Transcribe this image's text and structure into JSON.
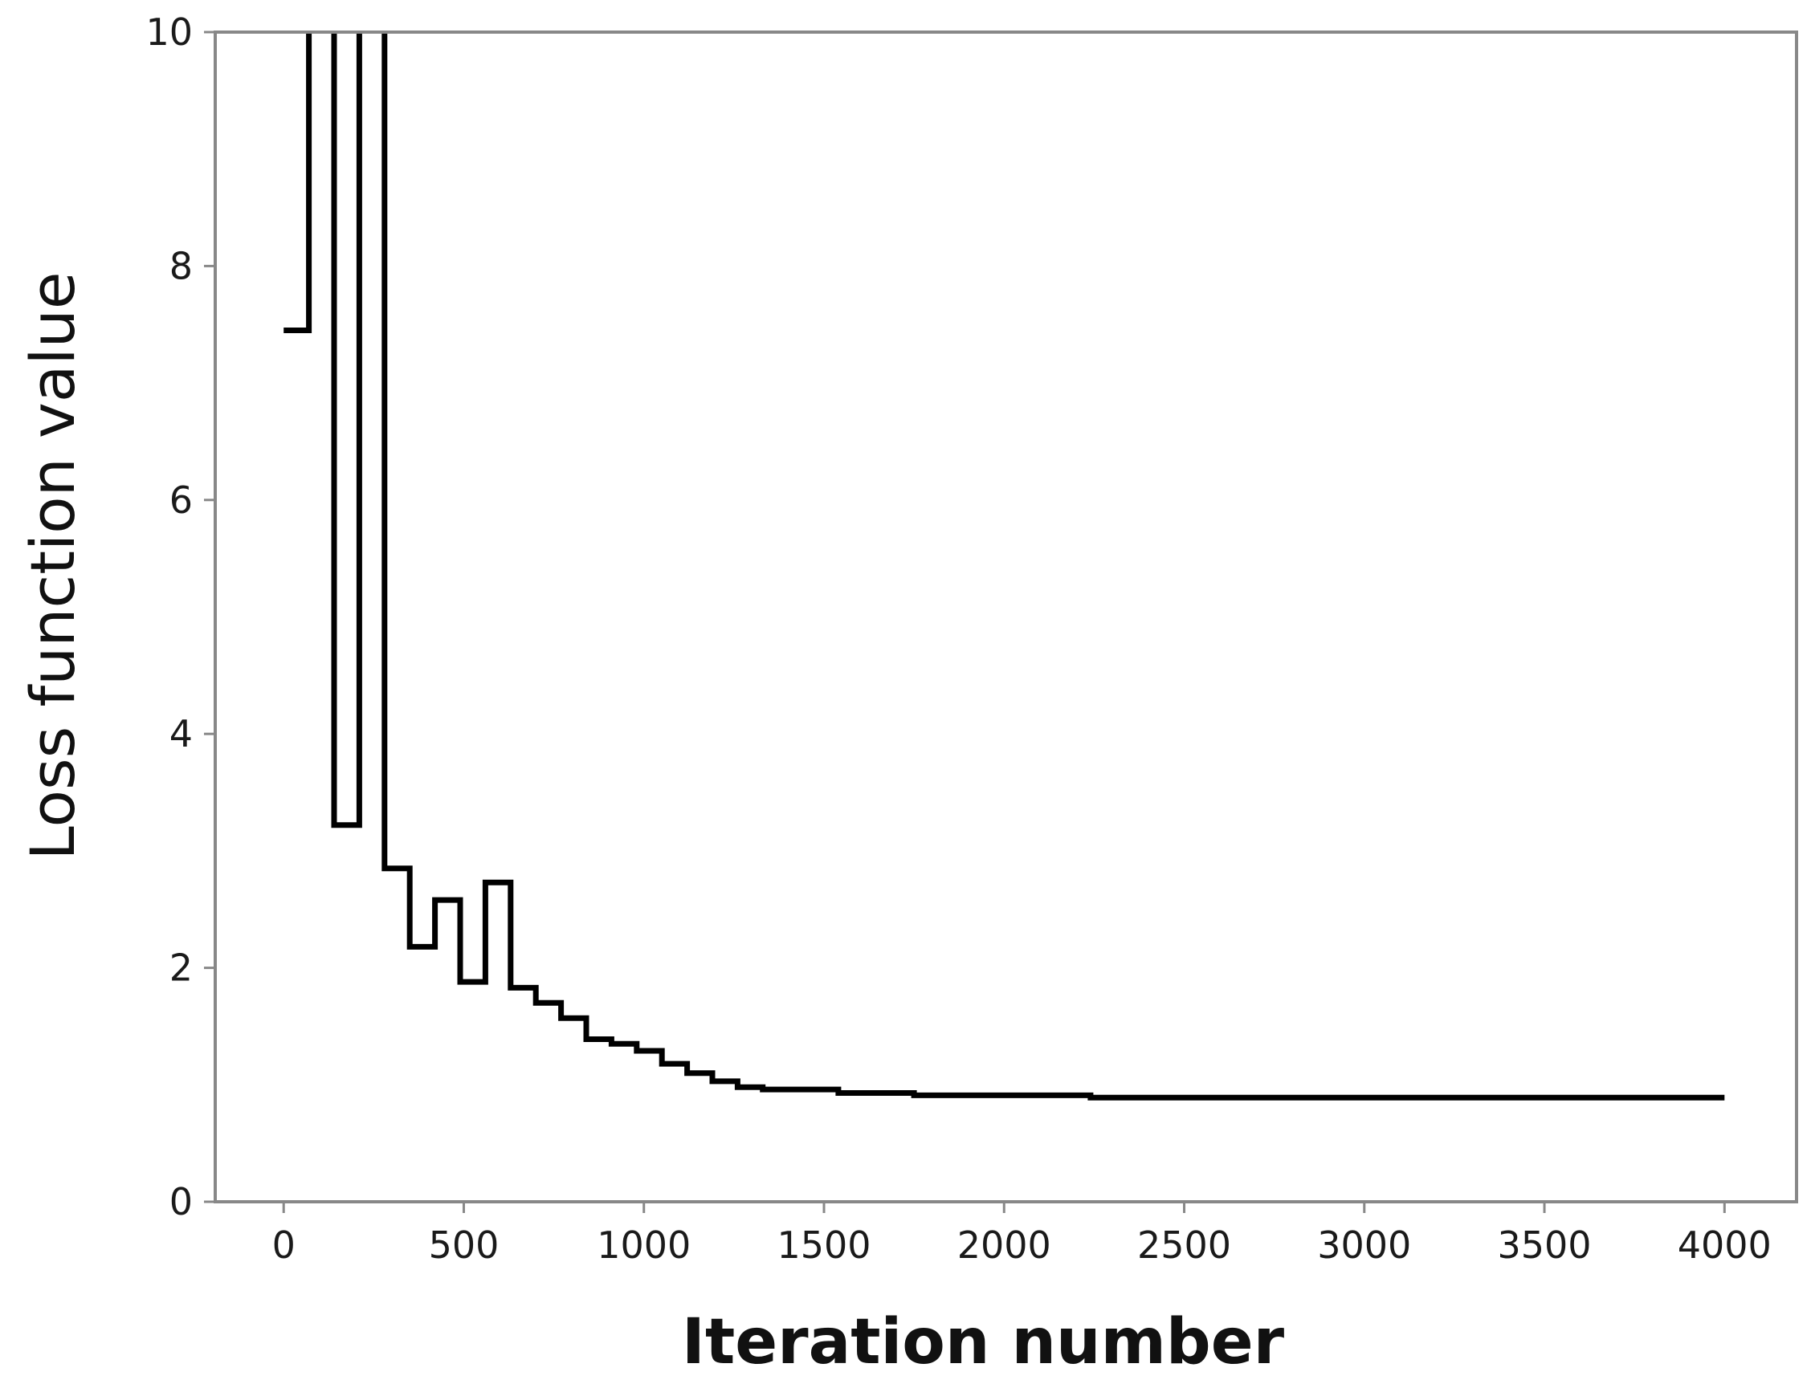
{
  "chart_data": {
    "type": "line",
    "title": "",
    "xlabel": "Iteration number",
    "ylabel": "Loss function value",
    "xlim": [
      -190,
      4200
    ],
    "ylim": [
      0,
      10
    ],
    "xticks": [
      0,
      500,
      1000,
      1500,
      2000,
      2500,
      3000,
      3500,
      4000
    ],
    "yticks": [
      0,
      2,
      4,
      6,
      8,
      10
    ],
    "grid": false,
    "legend": "none",
    "line_style": "step",
    "colors": {
      "line": "#000000",
      "axes": "#888888",
      "text": "#1a1a1a"
    },
    "series": [
      {
        "x": [
          0,
          70,
          70,
          140,
          140,
          210,
          210,
          280,
          280,
          350,
          350,
          420,
          420,
          490,
          490,
          560,
          560,
          630,
          630,
          700,
          700,
          770,
          770,
          840,
          840,
          910,
          910,
          980,
          980,
          1050,
          1050,
          1120,
          1120,
          1190,
          1190,
          1260,
          1260,
          1330,
          1330,
          1540,
          1540,
          1750,
          1750,
          2240,
          2240,
          4000
        ],
        "y": [
          7.45,
          7.45,
          10.5,
          10.5,
          3.22,
          3.22,
          10.5,
          10.5,
          2.85,
          2.85,
          2.18,
          2.18,
          2.58,
          2.58,
          1.88,
          1.88,
          2.73,
          2.73,
          1.83,
          1.83,
          1.7,
          1.7,
          1.57,
          1.57,
          1.39,
          1.39,
          1.35,
          1.35,
          1.29,
          1.29,
          1.18,
          1.18,
          1.1,
          1.1,
          1.03,
          1.03,
          0.98,
          0.98,
          0.96,
          0.96,
          0.93,
          0.93,
          0.91,
          0.91,
          0.89,
          0.89
        ]
      }
    ]
  }
}
